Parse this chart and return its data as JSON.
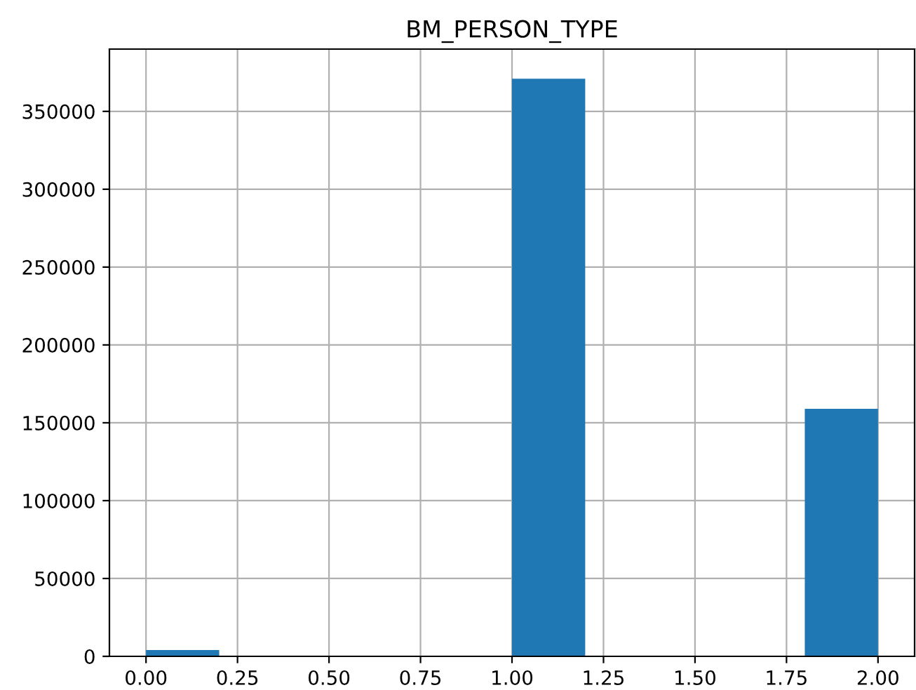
{
  "chart_data": {
    "type": "histogram",
    "title": "BM_PERSON_TYPE",
    "bins": [
      0.0,
      0.2,
      0.4,
      0.6,
      0.8,
      1.0,
      1.2,
      1.4,
      1.6,
      1.8,
      2.0
    ],
    "values": [
      4000,
      0,
      0,
      0,
      0,
      371000,
      0,
      0,
      0,
      159000
    ],
    "color": "#1f77b4",
    "xlim": [
      -0.1,
      2.1
    ],
    "ylim": [
      0,
      390000
    ],
    "xticks": [
      {
        "value": 0,
        "label": "0.00"
      },
      {
        "value": 0.25,
        "label": "0.25"
      },
      {
        "value": 0.5,
        "label": "0.50"
      },
      {
        "value": 0.75,
        "label": "0.75"
      },
      {
        "value": 1.0,
        "label": "1.00"
      },
      {
        "value": 1.25,
        "label": "1.25"
      },
      {
        "value": 1.5,
        "label": "1.50"
      },
      {
        "value": 1.75,
        "label": "1.75"
      },
      {
        "value": 2.0,
        "label": "2.00"
      }
    ],
    "yticks": [
      0,
      50000,
      100000,
      150000,
      200000,
      250000,
      300000,
      350000
    ],
    "grid": true
  }
}
